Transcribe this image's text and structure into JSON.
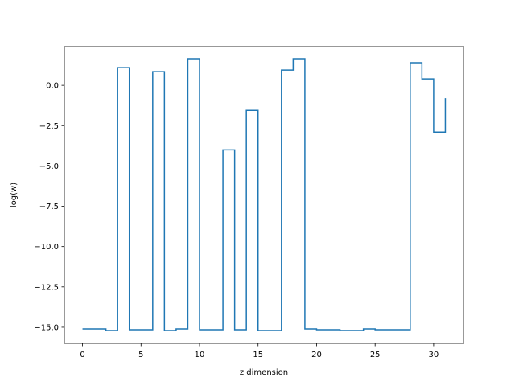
{
  "chart_data": {
    "type": "line",
    "drawstyle": "steps-post",
    "xlabel": "z dimension",
    "ylabel": "log(w)",
    "xlim": [
      -1.55,
      32.55
    ],
    "ylim": [
      -16.0,
      2.4
    ],
    "xticks": [
      0,
      5,
      10,
      15,
      20,
      25,
      30
    ],
    "yticks": [
      -15.0,
      -12.5,
      -10.0,
      -7.5,
      -5.0,
      -2.5,
      0.0
    ],
    "ytick_labels": [
      "−15.0",
      "−12.5",
      "−10.0",
      "−7.5",
      "−5.0",
      "−2.5",
      "0.0"
    ],
    "grid": false,
    "series": [
      {
        "color": "#1f77b4",
        "x": [
          0,
          1,
          2,
          3,
          4,
          5,
          6,
          7,
          8,
          9,
          10,
          11,
          12,
          13,
          14,
          15,
          16,
          17,
          18,
          19,
          20,
          21,
          22,
          23,
          24,
          25,
          26,
          27,
          28,
          29,
          30,
          31
        ],
        "y": [
          -15.1,
          -15.1,
          -15.2,
          1.1,
          -15.15,
          -15.15,
          0.85,
          -15.2,
          -15.1,
          1.65,
          -15.15,
          -15.15,
          -4.0,
          -15.15,
          -1.55,
          -15.2,
          -15.2,
          0.95,
          1.65,
          -15.1,
          -15.15,
          -15.15,
          -15.2,
          -15.2,
          -15.1,
          -15.15,
          -15.15,
          -15.15,
          1.4,
          0.4,
          -2.9,
          -0.8
        ]
      }
    ]
  }
}
